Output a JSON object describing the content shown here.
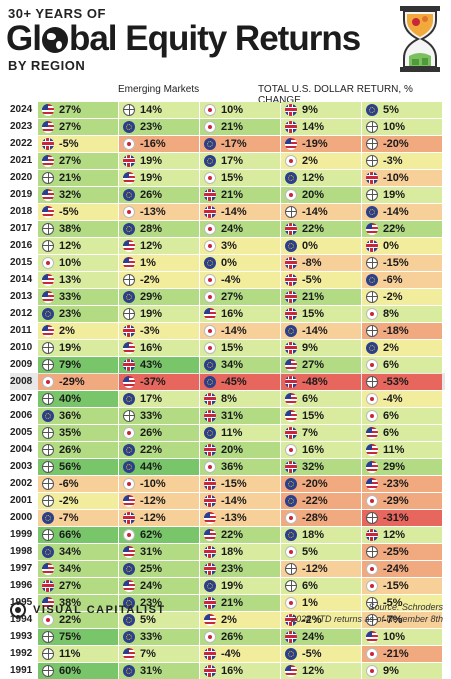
{
  "header": {
    "supertitle": "30+ YEARS OF",
    "title_prefix": "Gl",
    "title_suffix": "bal Equity Returns",
    "subtitle": "BY REGION",
    "column_label": "Emerging Markets",
    "right_label": "TOTAL U.S. DOLLAR RETURN, % CHANGE"
  },
  "footer": {
    "brand": "VISUAL CAPITALIST",
    "source": "Source: Schroders",
    "note": "2024 YTD returns as of November 8th"
  },
  "icons": [
    "us-flag",
    "emerging-markets-globe",
    "japan-flag",
    "uk-flag",
    "eu-flag"
  ],
  "colors": {
    "strong_green": "#79c66a",
    "green": "#b2db84",
    "light_green": "#d9eb9e",
    "yellow": "#f2ec9d",
    "light_orange": "#f7cf98",
    "orange": "#f1a980",
    "red": "#e7675f"
  },
  "chart_data": {
    "type": "table",
    "highlighted_year": "2008",
    "rows": [
      {
        "year": "2024",
        "cells": [
          {
            "icon": "us",
            "v": "27%"
          },
          {
            "icon": "em",
            "v": "14%"
          },
          {
            "icon": "jp",
            "v": "10%"
          },
          {
            "icon": "uk",
            "v": "9%"
          },
          {
            "icon": "eu",
            "v": "5%"
          }
        ]
      },
      {
        "year": "2023",
        "cells": [
          {
            "icon": "us",
            "v": "27%"
          },
          {
            "icon": "eu",
            "v": "23%"
          },
          {
            "icon": "jp",
            "v": "21%"
          },
          {
            "icon": "uk",
            "v": "14%"
          },
          {
            "icon": "em",
            "v": "10%"
          }
        ]
      },
      {
        "year": "2022",
        "cells": [
          {
            "icon": "uk",
            "v": "-5%"
          },
          {
            "icon": "jp",
            "v": "-16%"
          },
          {
            "icon": "eu",
            "v": "-17%"
          },
          {
            "icon": "us",
            "v": "-19%"
          },
          {
            "icon": "em",
            "v": "-20%"
          }
        ]
      },
      {
        "year": "2021",
        "cells": [
          {
            "icon": "us",
            "v": "27%"
          },
          {
            "icon": "uk",
            "v": "19%"
          },
          {
            "icon": "eu",
            "v": "17%"
          },
          {
            "icon": "jp",
            "v": "2%"
          },
          {
            "icon": "em",
            "v": "-3%"
          }
        ]
      },
      {
        "year": "2020",
        "cells": [
          {
            "icon": "em",
            "v": "21%"
          },
          {
            "icon": "us",
            "v": "19%"
          },
          {
            "icon": "jp",
            "v": "15%"
          },
          {
            "icon": "eu",
            "v": "12%"
          },
          {
            "icon": "uk",
            "v": "-10%"
          }
        ]
      },
      {
        "year": "2019",
        "cells": [
          {
            "icon": "us",
            "v": "32%"
          },
          {
            "icon": "eu",
            "v": "26%"
          },
          {
            "icon": "uk",
            "v": "21%"
          },
          {
            "icon": "jp",
            "v": "20%"
          },
          {
            "icon": "em",
            "v": "19%"
          }
        ]
      },
      {
        "year": "2018",
        "cells": [
          {
            "icon": "us",
            "v": "-5%"
          },
          {
            "icon": "jp",
            "v": "-13%"
          },
          {
            "icon": "uk",
            "v": "-14%"
          },
          {
            "icon": "em",
            "v": "-14%"
          },
          {
            "icon": "eu",
            "v": "-14%"
          }
        ]
      },
      {
        "year": "2017",
        "cells": [
          {
            "icon": "em",
            "v": "38%"
          },
          {
            "icon": "eu",
            "v": "28%"
          },
          {
            "icon": "jp",
            "v": "24%"
          },
          {
            "icon": "uk",
            "v": "22%"
          },
          {
            "icon": "us",
            "v": "22%"
          }
        ]
      },
      {
        "year": "2016",
        "cells": [
          {
            "icon": "em",
            "v": "12%"
          },
          {
            "icon": "us",
            "v": "12%"
          },
          {
            "icon": "jp",
            "v": "3%"
          },
          {
            "icon": "eu",
            "v": "0%"
          },
          {
            "icon": "uk",
            "v": "0%"
          }
        ]
      },
      {
        "year": "2015",
        "cells": [
          {
            "icon": "jp",
            "v": "10%"
          },
          {
            "icon": "us",
            "v": "1%"
          },
          {
            "icon": "eu",
            "v": "0%"
          },
          {
            "icon": "uk",
            "v": "-8%"
          },
          {
            "icon": "em",
            "v": "-15%"
          }
        ]
      },
      {
        "year": "2014",
        "cells": [
          {
            "icon": "us",
            "v": "13%"
          },
          {
            "icon": "em",
            "v": "-2%"
          },
          {
            "icon": "jp",
            "v": "-4%"
          },
          {
            "icon": "uk",
            "v": "-5%"
          },
          {
            "icon": "eu",
            "v": "-6%"
          }
        ]
      },
      {
        "year": "2013",
        "cells": [
          {
            "icon": "us",
            "v": "33%"
          },
          {
            "icon": "eu",
            "v": "29%"
          },
          {
            "icon": "jp",
            "v": "27%"
          },
          {
            "icon": "uk",
            "v": "21%"
          },
          {
            "icon": "em",
            "v": "-2%"
          }
        ]
      },
      {
        "year": "2012",
        "cells": [
          {
            "icon": "eu",
            "v": "23%"
          },
          {
            "icon": "em",
            "v": "19%"
          },
          {
            "icon": "us",
            "v": "16%"
          },
          {
            "icon": "uk",
            "v": "15%"
          },
          {
            "icon": "jp",
            "v": "8%"
          }
        ]
      },
      {
        "year": "2011",
        "cells": [
          {
            "icon": "us",
            "v": "2%"
          },
          {
            "icon": "uk",
            "v": "-3%"
          },
          {
            "icon": "jp",
            "v": "-14%"
          },
          {
            "icon": "eu",
            "v": "-14%"
          },
          {
            "icon": "em",
            "v": "-18%"
          }
        ]
      },
      {
        "year": "2010",
        "cells": [
          {
            "icon": "em",
            "v": "19%"
          },
          {
            "icon": "us",
            "v": "16%"
          },
          {
            "icon": "jp",
            "v": "15%"
          },
          {
            "icon": "uk",
            "v": "9%"
          },
          {
            "icon": "eu",
            "v": "2%"
          }
        ]
      },
      {
        "year": "2009",
        "cells": [
          {
            "icon": "em",
            "v": "79%"
          },
          {
            "icon": "uk",
            "v": "43%"
          },
          {
            "icon": "eu",
            "v": "34%"
          },
          {
            "icon": "us",
            "v": "27%"
          },
          {
            "icon": "jp",
            "v": "6%"
          }
        ]
      },
      {
        "year": "2008",
        "cells": [
          {
            "icon": "jp",
            "v": "-29%"
          },
          {
            "icon": "us",
            "v": "-37%"
          },
          {
            "icon": "eu",
            "v": "-45%"
          },
          {
            "icon": "uk",
            "v": "-48%"
          },
          {
            "icon": "em",
            "v": "-53%"
          }
        ]
      },
      {
        "year": "2007",
        "cells": [
          {
            "icon": "em",
            "v": "40%"
          },
          {
            "icon": "eu",
            "v": "17%"
          },
          {
            "icon": "uk",
            "v": "8%"
          },
          {
            "icon": "us",
            "v": "6%"
          },
          {
            "icon": "jp",
            "v": "-4%"
          }
        ]
      },
      {
        "year": "2006",
        "cells": [
          {
            "icon": "eu",
            "v": "36%"
          },
          {
            "icon": "em",
            "v": "33%"
          },
          {
            "icon": "uk",
            "v": "31%"
          },
          {
            "icon": "us",
            "v": "15%"
          },
          {
            "icon": "jp",
            "v": "6%"
          }
        ]
      },
      {
        "year": "2005",
        "cells": [
          {
            "icon": "em",
            "v": "35%"
          },
          {
            "icon": "jp",
            "v": "26%"
          },
          {
            "icon": "eu",
            "v": "11%"
          },
          {
            "icon": "uk",
            "v": "7%"
          },
          {
            "icon": "us",
            "v": "6%"
          }
        ]
      },
      {
        "year": "2004",
        "cells": [
          {
            "icon": "em",
            "v": "26%"
          },
          {
            "icon": "eu",
            "v": "22%"
          },
          {
            "icon": "uk",
            "v": "20%"
          },
          {
            "icon": "jp",
            "v": "16%"
          },
          {
            "icon": "us",
            "v": "11%"
          }
        ]
      },
      {
        "year": "2003",
        "cells": [
          {
            "icon": "em",
            "v": "56%"
          },
          {
            "icon": "eu",
            "v": "44%"
          },
          {
            "icon": "jp",
            "v": "36%"
          },
          {
            "icon": "uk",
            "v": "32%"
          },
          {
            "icon": "us",
            "v": "29%"
          }
        ]
      },
      {
        "year": "2002",
        "cells": [
          {
            "icon": "em",
            "v": "-6%"
          },
          {
            "icon": "jp",
            "v": "-10%"
          },
          {
            "icon": "uk",
            "v": "-15%"
          },
          {
            "icon": "eu",
            "v": "-20%"
          },
          {
            "icon": "us",
            "v": "-23%"
          }
        ]
      },
      {
        "year": "2001",
        "cells": [
          {
            "icon": "em",
            "v": "-2%"
          },
          {
            "icon": "us",
            "v": "-12%"
          },
          {
            "icon": "uk",
            "v": "-14%"
          },
          {
            "icon": "eu",
            "v": "-22%"
          },
          {
            "icon": "jp",
            "v": "-29%"
          }
        ]
      },
      {
        "year": "2000",
        "cells": [
          {
            "icon": "eu",
            "v": "-7%"
          },
          {
            "icon": "uk",
            "v": "-12%"
          },
          {
            "icon": "us",
            "v": "-13%"
          },
          {
            "icon": "jp",
            "v": "-28%"
          },
          {
            "icon": "em",
            "v": "-31%"
          }
        ]
      },
      {
        "year": "1999",
        "cells": [
          {
            "icon": "em",
            "v": "66%"
          },
          {
            "icon": "jp",
            "v": "62%"
          },
          {
            "icon": "us",
            "v": "22%"
          },
          {
            "icon": "eu",
            "v": "18%"
          },
          {
            "icon": "uk",
            "v": "12%"
          }
        ]
      },
      {
        "year": "1998",
        "cells": [
          {
            "icon": "eu",
            "v": "34%"
          },
          {
            "icon": "us",
            "v": "31%"
          },
          {
            "icon": "uk",
            "v": "18%"
          },
          {
            "icon": "jp",
            "v": "5%"
          },
          {
            "icon": "em",
            "v": "-25%"
          }
        ]
      },
      {
        "year": "1997",
        "cells": [
          {
            "icon": "us",
            "v": "34%"
          },
          {
            "icon": "eu",
            "v": "25%"
          },
          {
            "icon": "uk",
            "v": "23%"
          },
          {
            "icon": "em",
            "v": "-12%"
          },
          {
            "icon": "jp",
            "v": "-24%"
          }
        ]
      },
      {
        "year": "1996",
        "cells": [
          {
            "icon": "uk",
            "v": "27%"
          },
          {
            "icon": "us",
            "v": "24%"
          },
          {
            "icon": "eu",
            "v": "19%"
          },
          {
            "icon": "em",
            "v": "6%"
          },
          {
            "icon": "jp",
            "v": "-15%"
          }
        ]
      },
      {
        "year": "1995",
        "cells": [
          {
            "icon": "us",
            "v": "38%"
          },
          {
            "icon": "eu",
            "v": "23%"
          },
          {
            "icon": "uk",
            "v": "21%"
          },
          {
            "icon": "jp",
            "v": "1%"
          },
          {
            "icon": "em",
            "v": "-5%"
          }
        ]
      },
      {
        "year": "1994",
        "cells": [
          {
            "icon": "jp",
            "v": "22%"
          },
          {
            "icon": "eu",
            "v": "5%"
          },
          {
            "icon": "us",
            "v": "2%"
          },
          {
            "icon": "uk",
            "v": "-2%"
          },
          {
            "icon": "em",
            "v": "-7%"
          }
        ]
      },
      {
        "year": "1993",
        "cells": [
          {
            "icon": "em",
            "v": "75%"
          },
          {
            "icon": "eu",
            "v": "33%"
          },
          {
            "icon": "jp",
            "v": "26%"
          },
          {
            "icon": "uk",
            "v": "24%"
          },
          {
            "icon": "us",
            "v": "10%"
          }
        ]
      },
      {
        "year": "1992",
        "cells": [
          {
            "icon": "em",
            "v": "11%"
          },
          {
            "icon": "us",
            "v": "7%"
          },
          {
            "icon": "uk",
            "v": "-4%"
          },
          {
            "icon": "eu",
            "v": "-5%"
          },
          {
            "icon": "jp",
            "v": "-21%"
          }
        ]
      },
      {
        "year": "1991",
        "cells": [
          {
            "icon": "em",
            "v": "60%"
          },
          {
            "icon": "eu",
            "v": "31%"
          },
          {
            "icon": "uk",
            "v": "16%"
          },
          {
            "icon": "us",
            "v": "12%"
          },
          {
            "icon": "jp",
            "v": "9%"
          }
        ]
      }
    ]
  }
}
